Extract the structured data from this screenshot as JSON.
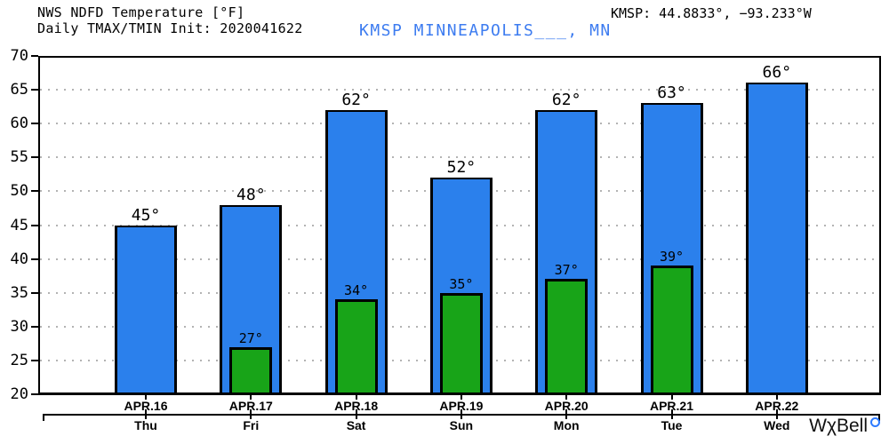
{
  "header": {
    "station_text_color": "#3d7cf0"
  },
  "watermark": {
    "text": "WχBell",
    "degree_icon_color": "#2e7bff"
  },
  "chart_data": {
    "type": "bar",
    "title": "NWS NDFD Temperature [°F]",
    "subtitle": "Daily TMAX/TMIN Init: 2020041622",
    "station": "KMSP MINNEAPOLIS___, MN",
    "station_coords": "KMSP: 44.8833°, −93.233°W",
    "categories": [
      "APR.16",
      "APR.17",
      "APR.18",
      "APR.19",
      "APR.20",
      "APR.21",
      "APR.22"
    ],
    "day_labels": [
      "Thu",
      "Fri",
      "Sat",
      "Sun",
      "Mon",
      "Tue",
      "Wed"
    ],
    "series": [
      {
        "name": "TMAX",
        "color": "#2b80ec",
        "values": [
          45,
          48,
          62,
          52,
          62,
          63,
          66
        ]
      },
      {
        "name": "TMIN",
        "color": "#18a418",
        "values": [
          null,
          27,
          34,
          35,
          37,
          39,
          null
        ]
      }
    ],
    "value_suffix": "°",
    "ylim": [
      20,
      70
    ],
    "ytick_step": 5,
    "grid": "dotted-horizontal",
    "legend": "none"
  }
}
